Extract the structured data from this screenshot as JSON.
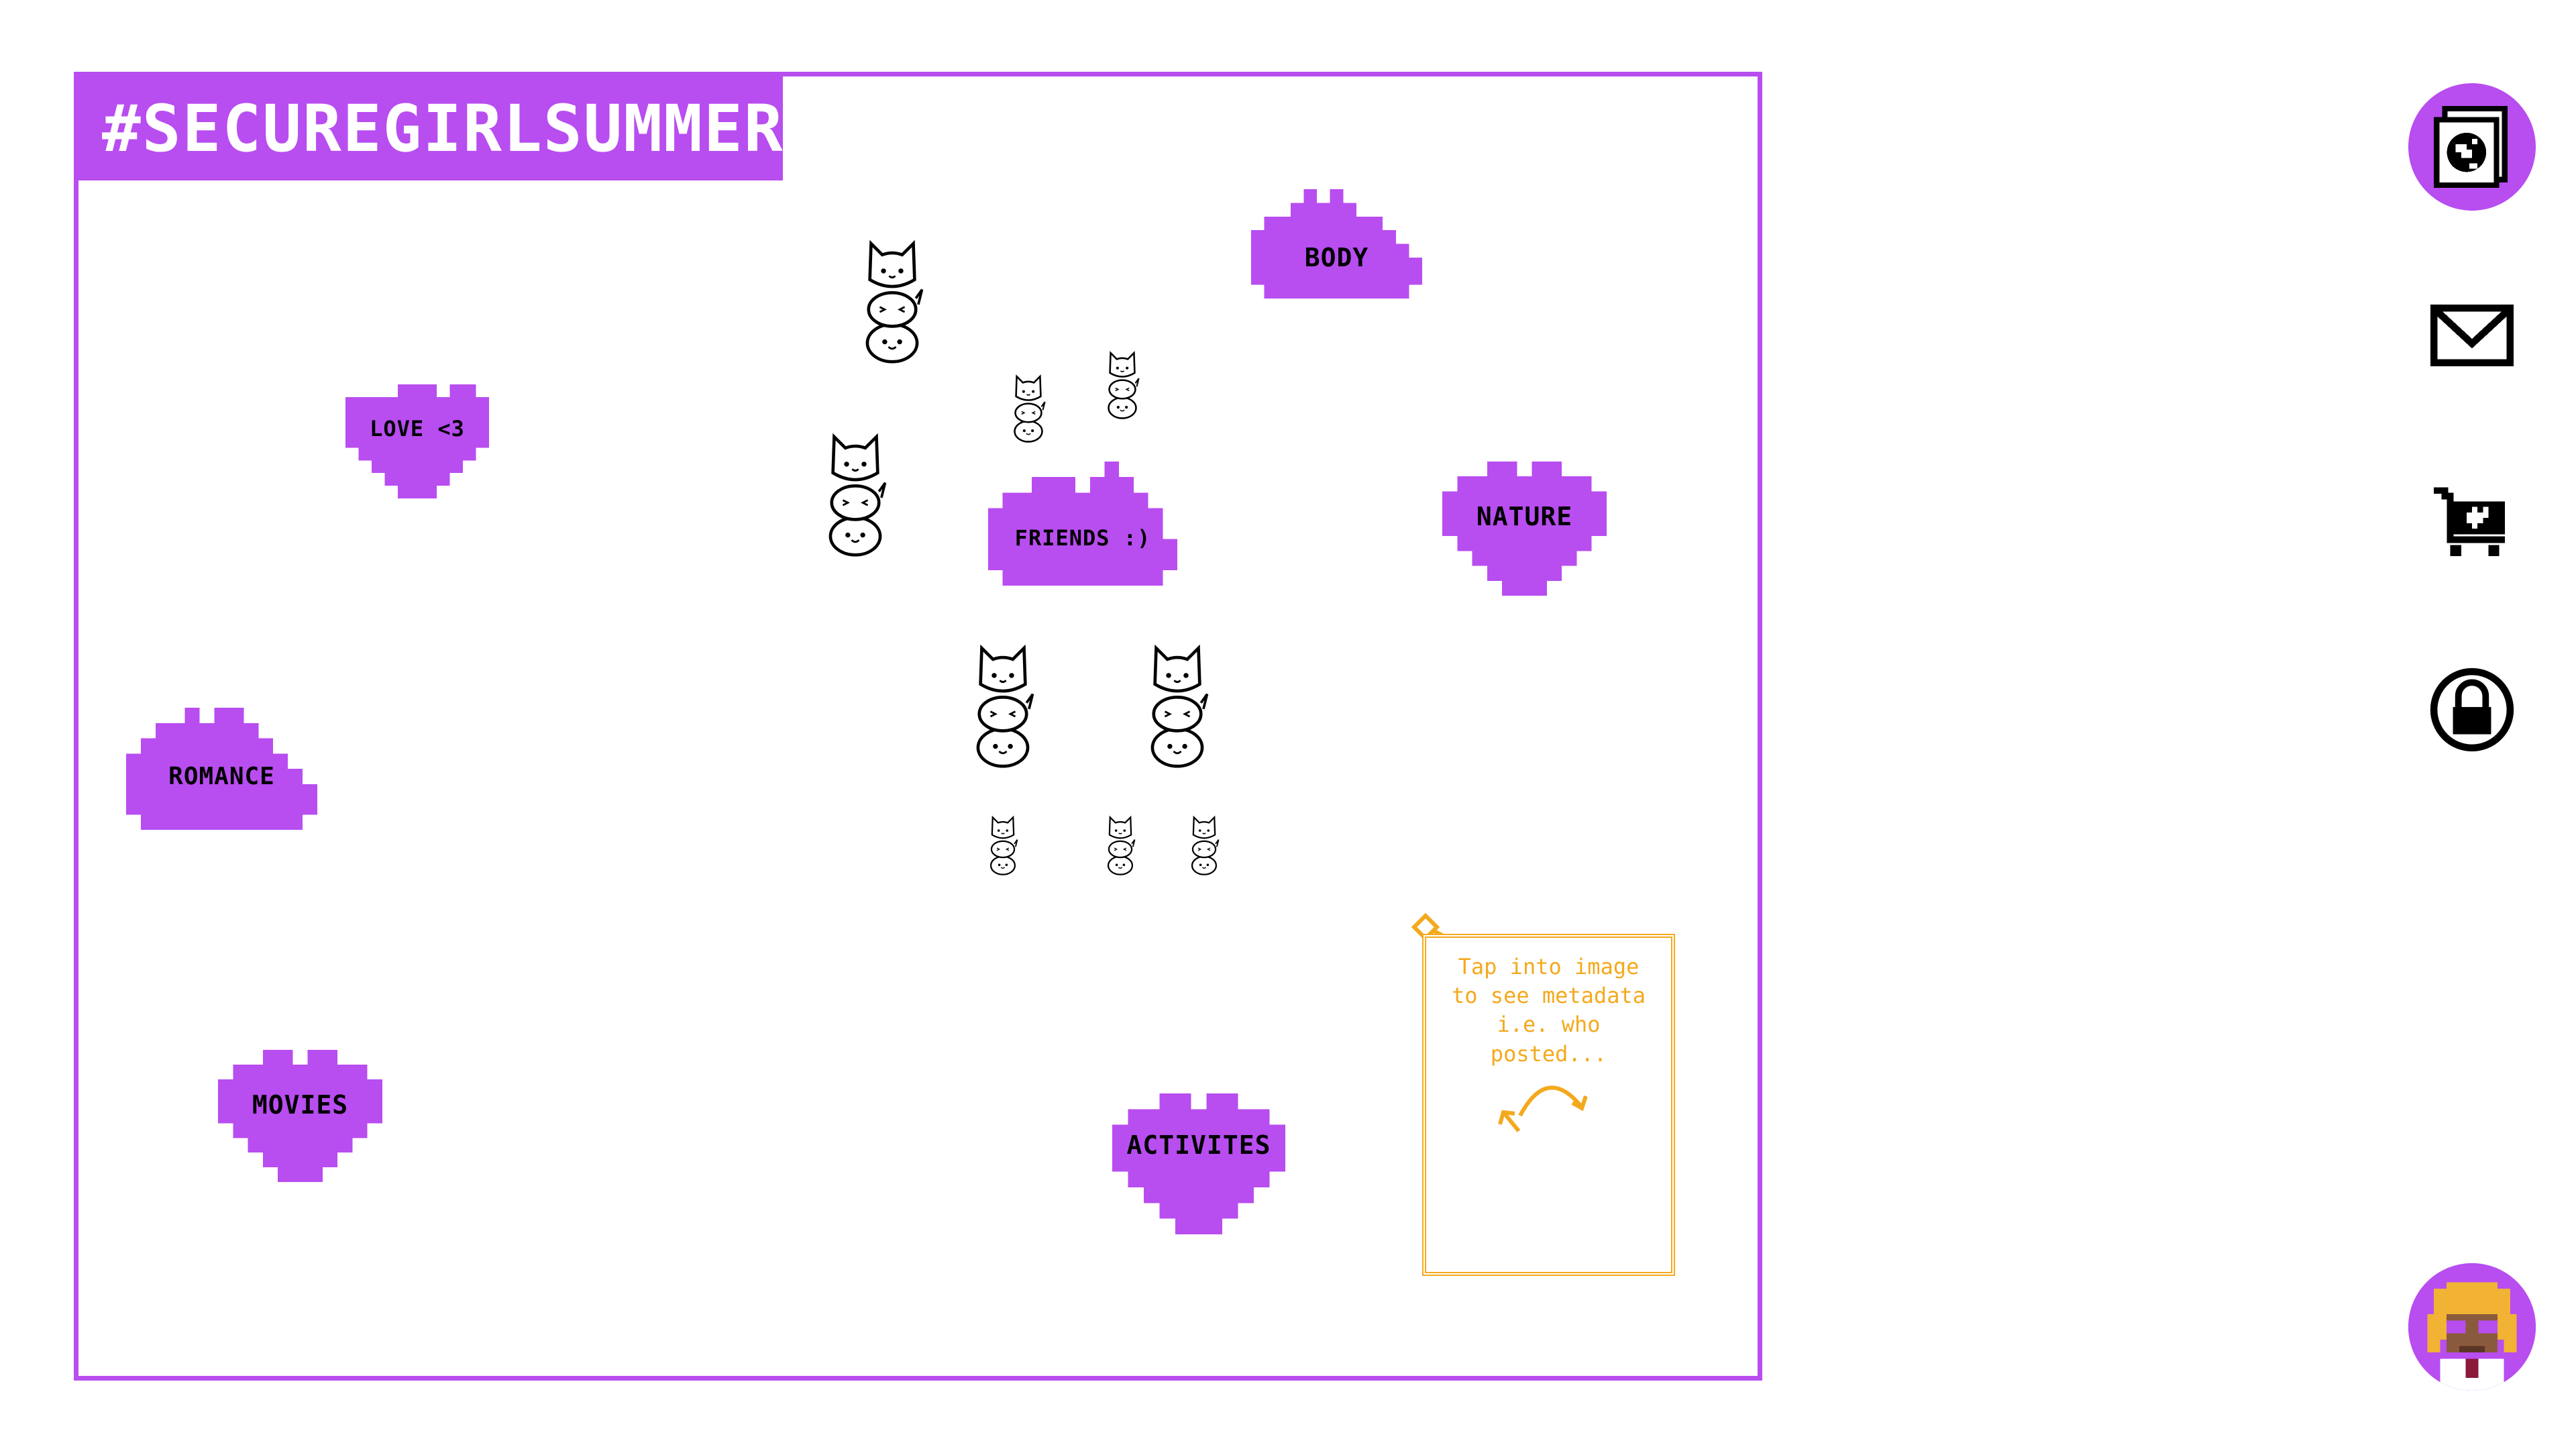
{
  "board": {
    "title": "#SECUREGIRLSUMMER",
    "accent_color": "#b84df0",
    "tip_color": "#f4a91c",
    "stickers": [
      {
        "id": "love",
        "shape": "heart",
        "label": "LOVE <3"
      },
      {
        "id": "body",
        "shape": "cloud",
        "label": "BODY"
      },
      {
        "id": "nature",
        "shape": "heart",
        "label": "NATURE"
      },
      {
        "id": "friends",
        "shape": "cloud",
        "label": "FRIENDS :)"
      },
      {
        "id": "romance",
        "shape": "cloud",
        "label": "ROMANCE"
      },
      {
        "id": "movies",
        "shape": "heart",
        "label": "MOVIES"
      },
      {
        "id": "activities",
        "shape": "heart",
        "label": "ACTIVITES"
      }
    ],
    "images": [
      {
        "name": "cat-stack",
        "icon": "cat-stack-icon"
      }
    ],
    "tip": {
      "lines": [
        "Tap into image",
        "to see metadata",
        "i.e. who posted..."
      ],
      "arrow_icon": "curved-arrow-icon"
    }
  },
  "nav": [
    {
      "id": "gallery",
      "icon": "gallery-globe-icon",
      "active": true
    },
    {
      "id": "mail",
      "icon": "envelope-icon",
      "active": false
    },
    {
      "id": "shop",
      "icon": "shopping-cart-heart-icon",
      "active": false
    },
    {
      "id": "lock",
      "icon": "padlock-icon",
      "active": false
    }
  ],
  "profile": {
    "icon": "avatar-icon"
  }
}
